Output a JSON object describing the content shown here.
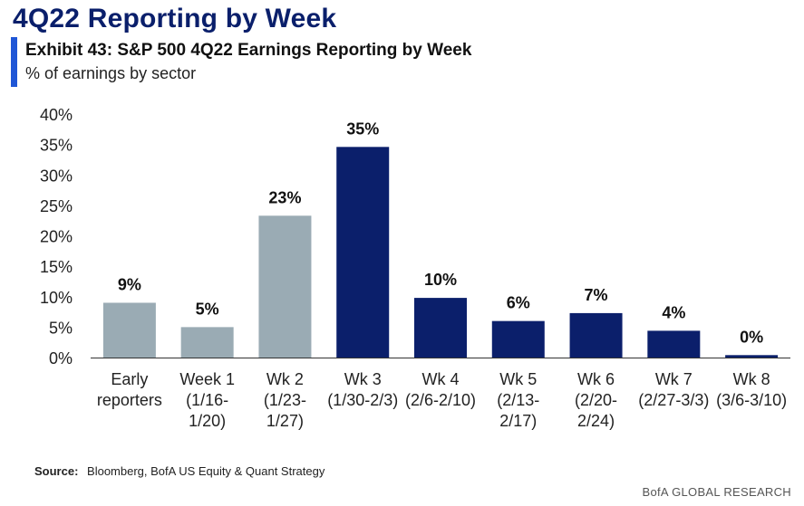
{
  "header": {
    "title": "4Q22 Reporting by Week",
    "exhibit_title": "Exhibit 43: S&P 500 4Q22 Earnings Reporting by Week",
    "subtitle": "% of earnings by sector",
    "accent_color": "#1f56d6",
    "title_color": "#0a1f6b"
  },
  "chart_data": {
    "type": "bar",
    "categories": [
      [
        "Early",
        "reporters"
      ],
      [
        "Week 1",
        "(1/16-",
        "1/20)"
      ],
      [
        "Wk 2",
        "(1/23-",
        "1/27)"
      ],
      [
        "Wk 3",
        "(1/30-2/3)"
      ],
      [
        "Wk 4",
        "(2/6-2/10)"
      ],
      [
        "Wk 5",
        "(2/13-",
        "2/17)"
      ],
      [
        "Wk 6",
        "(2/20-",
        "2/24)"
      ],
      [
        "Wk 7",
        "(2/27-3/3)"
      ],
      [
        "Wk 8",
        "(3/6-3/10)"
      ]
    ],
    "values": [
      9,
      5,
      23,
      35,
      10,
      6,
      7,
      4,
      0
    ],
    "value_heights": [
      9.0,
      5.0,
      23.3,
      34.6,
      9.8,
      6.0,
      7.3,
      4.4,
      0.4
    ],
    "data_labels": [
      "9%",
      "5%",
      "23%",
      "35%",
      "10%",
      "6%",
      "7%",
      "4%",
      "0%"
    ],
    "bar_colors": [
      "#9aabb4",
      "#9aabb4",
      "#9aabb4",
      "#0b1f6b",
      "#0b1f6b",
      "#0b1f6b",
      "#0b1f6b",
      "#0b1f6b",
      "#0b1f6b"
    ],
    "ylim": [
      0,
      40
    ],
    "yticks": [
      "0%",
      "5%",
      "10%",
      "15%",
      "20%",
      "25%",
      "30%",
      "35%",
      "40%"
    ],
    "ytick_values": [
      0,
      5,
      10,
      15,
      20,
      25,
      30,
      35,
      40
    ],
    "grid": false,
    "xlabel": "",
    "ylabel": ""
  },
  "footer": {
    "source_label": "Source:",
    "source_text": "Bloomberg, BofA US Equity & Quant Strategy",
    "brand": "BofA GLOBAL RESEARCH"
  }
}
